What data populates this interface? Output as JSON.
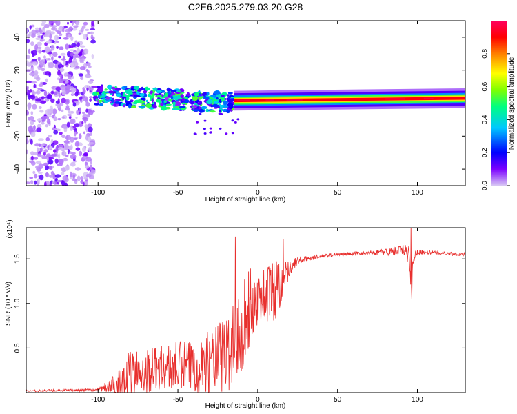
{
  "title": "C2E6.2025.279.03.20.G28",
  "colors": {
    "snr_line": "#e8302e",
    "axis": "#000000",
    "background": "#ffffff"
  },
  "chart_data": [
    {
      "type": "heatmap",
      "name": "spectrogram",
      "xlabel": "Height of straight line (km)",
      "ylabel": "Frequency (Hz)",
      "xlim": [
        -145,
        130
      ],
      "ylim": [
        -50,
        50
      ],
      "x_ticks": [
        -100,
        -50,
        0,
        50,
        100
      ],
      "y_ticks": [
        -40,
        -20,
        0,
        20,
        40
      ],
      "colorbar": {
        "label": "Normalized spectral amplitude",
        "range": [
          0,
          1
        ],
        "ticks": [
          "0.0",
          "0.2",
          "0.4",
          "0.6",
          "0.8"
        ],
        "colormap": [
          "#d8c8f4",
          "#7b00ff",
          "#0000ff",
          "#00c8ff",
          "#00ff80",
          "#80ff00",
          "#ffff00",
          "#ff8000",
          "#ff0000",
          "#ff0060"
        ]
      },
      "features": [
        {
          "segment": "noise",
          "x_range": [
            -145,
            -103
          ],
          "freq_range": [
            -50,
            50
          ],
          "amplitude": 0.15
        },
        {
          "segment": "scattered",
          "x_range": [
            -103,
            -15
          ],
          "freq_center": [
            5,
            0
          ],
          "freq_spread": 6,
          "amplitude": 0.45
        },
        {
          "segment": "carrier",
          "x_range": [
            -15,
            130
          ],
          "freq_center": [
            1.5,
            3
          ],
          "amplitude": 0.9
        }
      ]
    },
    {
      "type": "line",
      "name": "snr",
      "xlabel": "Height of straight line (km)",
      "ylabel": "SNR (10 * v/v)",
      "y_multiplier": "(x10⁴)",
      "xlim": [
        -145,
        130
      ],
      "ylim": [
        0,
        1.85
      ],
      "x_ticks": [
        -100,
        -50,
        0,
        50,
        100
      ],
      "y_ticks": [
        "0.5",
        "1.0",
        "1.5"
      ],
      "envelope": {
        "x": [
          -145,
          -100,
          -90,
          -80,
          -70,
          -60,
          -50,
          -40,
          -30,
          -20,
          -15,
          -10,
          -5,
          0,
          5,
          10,
          15,
          20,
          25,
          30,
          40,
          50,
          60,
          70,
          80,
          90,
          95,
          96,
          97,
          100,
          110,
          120,
          130
        ],
        "y": [
          0.02,
          0.03,
          0.08,
          0.2,
          0.25,
          0.28,
          0.28,
          0.3,
          0.35,
          0.42,
          0.55,
          0.75,
          0.95,
          1.05,
          1.1,
          1.15,
          1.25,
          1.4,
          1.48,
          1.5,
          1.53,
          1.55,
          1.56,
          1.57,
          1.58,
          1.6,
          1.55,
          1.08,
          1.5,
          1.58,
          1.57,
          1.56,
          1.55
        ],
        "amp": [
          0.01,
          0.015,
          0.12,
          0.28,
          0.25,
          0.25,
          0.3,
          0.3,
          0.35,
          0.45,
          0.5,
          0.55,
          0.45,
          0.28,
          0.35,
          0.4,
          0.25,
          0.08,
          0.05,
          0.03,
          0.02,
          0.02,
          0.02,
          0.02,
          0.04,
          0.06,
          0.12,
          0.0,
          0.08,
          0.03,
          0.02,
          0.02,
          0.02
        ]
      },
      "peaks": [
        {
          "x": -14,
          "y": 1.75
        },
        {
          "x": 16,
          "y": 1.72
        },
        {
          "x": 96,
          "y": 1.85
        },
        {
          "x": 96.5,
          "y": 1.05
        }
      ]
    }
  ]
}
